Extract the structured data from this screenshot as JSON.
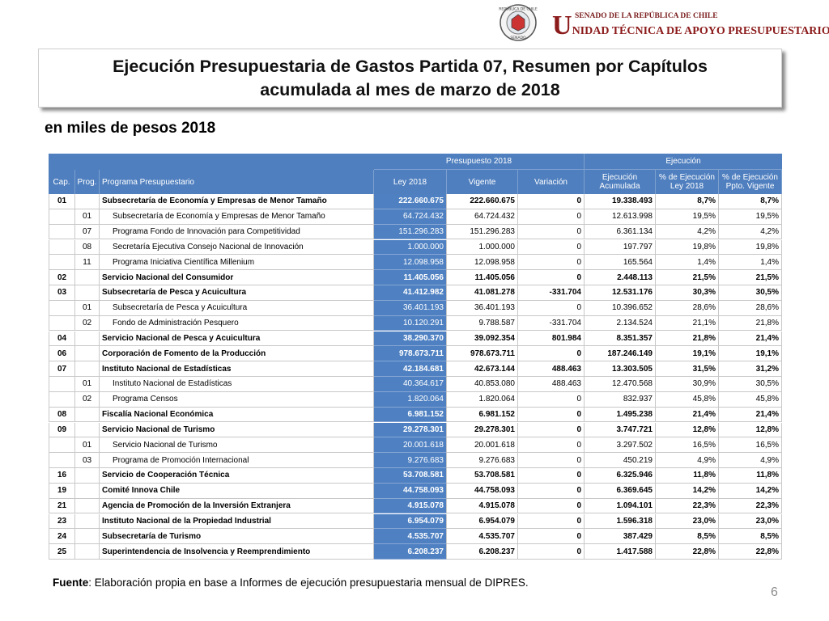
{
  "logo": {
    "seal_top": "REPÚBLICA DE CHILE",
    "seal_bottom": "SENADO"
  },
  "header": {
    "senate": "SENADO DE LA REPÚBLICA DE CHILE",
    "unit": "UNIDAD TÉCNICA DE APOYO PRESUPUESTARIO"
  },
  "title": {
    "line1": "Ejecución Presupuestaria de Gastos Partida 07, Resumen por Capítulos",
    "line2": "acumulada al mes de marzo de 2018"
  },
  "subtitle": "en miles de pesos 2018",
  "table": {
    "group_headers": {
      "presupuesto": "Presupuesto 2018",
      "ejecucion": "Ejecución"
    },
    "columns": {
      "cap": [
        "Cap."
      ],
      "prog": [
        "Prog."
      ],
      "programa": [
        "Programa Presupuestario"
      ],
      "ley_2018": [
        "Ley 2018"
      ],
      "vigente": [
        "Vigente"
      ],
      "variacion": [
        "Variación"
      ],
      "ejecucion_acumulada": [
        "Ejecución",
        "Acumulada"
      ],
      "pct_ley": [
        "% de Ejecución",
        "Ley 2018"
      ],
      "pct_vigente": [
        "% de Ejecución",
        "Ppto. Vigente"
      ]
    },
    "rows": [
      {
        "cap": "01",
        "programa": "Subsecretaría de Economía y Empresas de Menor Tamaño",
        "ley_2018": "222.660.675",
        "vigente": "222.660.675",
        "variacion": "0",
        "ejecucion_acumulada": "19.338.493",
        "pct_ley": "8,7%",
        "pct_vigente": "8,7%"
      },
      {
        "prog": "01",
        "programa": "Subsecretaría de Economía y Empresas de Menor Tamaño",
        "ley_2018": "64.724.432",
        "vigente": "64.724.432",
        "variacion": "0",
        "ejecucion_acumulada": "12.613.998",
        "pct_ley": "19,5%",
        "pct_vigente": "19,5%"
      },
      {
        "prog": "07",
        "programa": "Programa Fondo de Innovación para Competitividad",
        "ley_2018": "151.296.283",
        "vigente": "151.296.283",
        "variacion": "0",
        "ejecucion_acumulada": "6.361.134",
        "pct_ley": "4,2%",
        "pct_vigente": "4,2%"
      },
      {
        "prog": "08",
        "programa": "Secretaría Ejecutiva Consejo Nacional de Innovación",
        "ley_2018": "1.000.000",
        "vigente": "1.000.000",
        "variacion": "0",
        "ejecucion_acumulada": "197.797",
        "pct_ley": "19,8%",
        "pct_vigente": "19,8%"
      },
      {
        "prog": "11",
        "programa": "Programa Iniciativa Científica Millenium",
        "ley_2018": "12.098.958",
        "vigente": "12.098.958",
        "variacion": "0",
        "ejecucion_acumulada": "165.564",
        "pct_ley": "1,4%",
        "pct_vigente": "1,4%"
      },
      {
        "cap": "02",
        "programa": "Servicio Nacional del Consumidor",
        "ley_2018": "11.405.056",
        "vigente": "11.405.056",
        "variacion": "0",
        "ejecucion_acumulada": "2.448.113",
        "pct_ley": "21,5%",
        "pct_vigente": "21,5%"
      },
      {
        "cap": "03",
        "programa": "Subsecretaría de Pesca y Acuicultura",
        "ley_2018": "41.412.982",
        "vigente": "41.081.278",
        "variacion": "-331.704",
        "ejecucion_acumulada": "12.531.176",
        "pct_ley": "30,3%",
        "pct_vigente": "30,5%"
      },
      {
        "prog": "01",
        "programa": "Subsecretaría de Pesca y Acuicultura",
        "ley_2018": "36.401.193",
        "vigente": "36.401.193",
        "variacion": "0",
        "ejecucion_acumulada": "10.396.652",
        "pct_ley": "28,6%",
        "pct_vigente": "28,6%"
      },
      {
        "prog": "02",
        "programa": "Fondo de Administración Pesquero",
        "ley_2018": "10.120.291",
        "vigente": "9.788.587",
        "variacion": "-331.704",
        "ejecucion_acumulada": "2.134.524",
        "pct_ley": "21,1%",
        "pct_vigente": "21,8%"
      },
      {
        "cap": "04",
        "programa": "Servicio Nacional de Pesca y Acuicultura",
        "ley_2018": "38.290.370",
        "vigente": "39.092.354",
        "variacion": "801.984",
        "ejecucion_acumulada": "8.351.357",
        "pct_ley": "21,8%",
        "pct_vigente": "21,4%"
      },
      {
        "cap": "06",
        "programa": "Corporación de Fomento de la Producción",
        "ley_2018": "978.673.711",
        "vigente": "978.673.711",
        "variacion": "0",
        "ejecucion_acumulada": "187.246.149",
        "pct_ley": "19,1%",
        "pct_vigente": "19,1%"
      },
      {
        "cap": "07",
        "programa": "Instituto Nacional de Estadísticas",
        "ley_2018": "42.184.681",
        "vigente": "42.673.144",
        "variacion": "488.463",
        "ejecucion_acumulada": "13.303.505",
        "pct_ley": "31,5%",
        "pct_vigente": "31,2%"
      },
      {
        "prog": "01",
        "programa": "Instituto Nacional de Estadísticas",
        "ley_2018": "40.364.617",
        "vigente": "40.853.080",
        "variacion": "488.463",
        "ejecucion_acumulada": "12.470.568",
        "pct_ley": "30,9%",
        "pct_vigente": "30,5%"
      },
      {
        "prog": "02",
        "programa": "Programa Censos",
        "ley_2018": "1.820.064",
        "vigente": "1.820.064",
        "variacion": "0",
        "ejecucion_acumulada": "832.937",
        "pct_ley": "45,8%",
        "pct_vigente": "45,8%"
      },
      {
        "cap": "08",
        "programa": "Fiscalía Nacional Económica",
        "ley_2018": "6.981.152",
        "vigente": "6.981.152",
        "variacion": "0",
        "ejecucion_acumulada": "1.495.238",
        "pct_ley": "21,4%",
        "pct_vigente": "21,4%"
      },
      {
        "cap": "09",
        "programa": "Servicio Nacional de Turismo",
        "ley_2018": "29.278.301",
        "vigente": "29.278.301",
        "variacion": "0",
        "ejecucion_acumulada": "3.747.721",
        "pct_ley": "12,8%",
        "pct_vigente": "12,8%"
      },
      {
        "prog": "01",
        "programa": "Servicio Nacional de Turismo",
        "ley_2018": "20.001.618",
        "vigente": "20.001.618",
        "variacion": "0",
        "ejecucion_acumulada": "3.297.502",
        "pct_ley": "16,5%",
        "pct_vigente": "16,5%"
      },
      {
        "prog": "03",
        "programa": "Programa de Promoción Internacional",
        "ley_2018": "9.276.683",
        "vigente": "9.276.683",
        "variacion": "0",
        "ejecucion_acumulada": "450.219",
        "pct_ley": "4,9%",
        "pct_vigente": "4,9%"
      },
      {
        "cap": "16",
        "programa": "Servicio de Cooperación Técnica",
        "ley_2018": "53.708.581",
        "vigente": "53.708.581",
        "variacion": "0",
        "ejecucion_acumulada": "6.325.946",
        "pct_ley": "11,8%",
        "pct_vigente": "11,8%"
      },
      {
        "cap": "19",
        "programa": "Comité Innova Chile",
        "ley_2018": "44.758.093",
        "vigente": "44.758.093",
        "variacion": "0",
        "ejecucion_acumulada": "6.369.645",
        "pct_ley": "14,2%",
        "pct_vigente": "14,2%"
      },
      {
        "cap": "21",
        "programa": "Agencia de Promoción de la Inversión Extranjera",
        "ley_2018": "4.915.078",
        "vigente": "4.915.078",
        "variacion": "0",
        "ejecucion_acumulada": "1.094.101",
        "pct_ley": "22,3%",
        "pct_vigente": "22,3%"
      },
      {
        "cap": "23",
        "programa": "Instituto Nacional de la Propiedad Industrial",
        "ley_2018": "6.954.079",
        "vigente": "6.954.079",
        "variacion": "0",
        "ejecucion_acumulada": "1.596.318",
        "pct_ley": "23,0%",
        "pct_vigente": "23,0%"
      },
      {
        "cap": "24",
        "programa": "Subsecretaría de Turismo",
        "ley_2018": "4.535.707",
        "vigente": "4.535.707",
        "variacion": "0",
        "ejecucion_acumulada": "387.429",
        "pct_ley": "8,5%",
        "pct_vigente": "8,5%"
      },
      {
        "cap": "25",
        "programa": "Superintendencia de Insolvencia y Reemprendimiento",
        "ley_2018": "6.208.237",
        "vigente": "6.208.237",
        "variacion": "0",
        "ejecucion_acumulada": "1.417.588",
        "pct_ley": "22,8%",
        "pct_vigente": "22,8%"
      }
    ]
  },
  "footer": {
    "label": "Fuente",
    "text": ": Elaboración propia en base a Informes de ejecución presupuestaria mensual de DIPRES."
  },
  "page_number": "6"
}
